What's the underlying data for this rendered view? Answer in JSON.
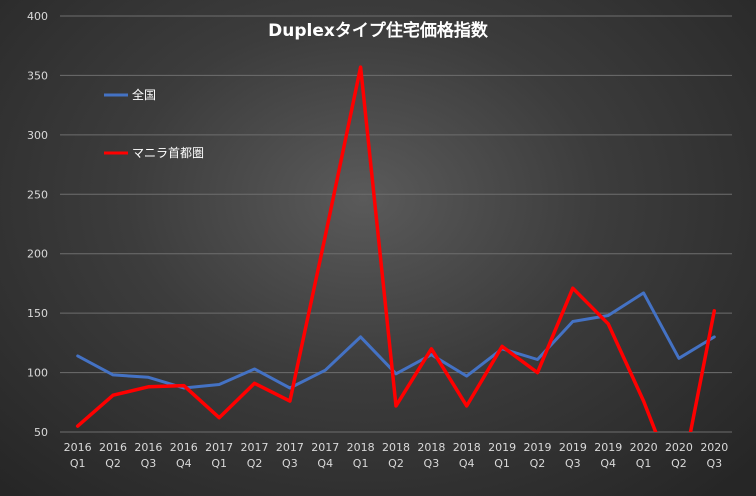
{
  "chart_data": {
    "type": "line",
    "title": "Duplexタイプ住宅価格指数",
    "categories": [
      [
        "2016",
        "Q1"
      ],
      [
        "2016",
        "Q2"
      ],
      [
        "2016",
        "Q3"
      ],
      [
        "2016",
        "Q4"
      ],
      [
        "2017",
        "Q1"
      ],
      [
        "2017",
        "Q2"
      ],
      [
        "2017",
        "Q3"
      ],
      [
        "2017",
        "Q4"
      ],
      [
        "2018",
        "Q1"
      ],
      [
        "2018",
        "Q2"
      ],
      [
        "2018",
        "Q3"
      ],
      [
        "2018",
        "Q4"
      ],
      [
        "2019",
        "Q1"
      ],
      [
        "2019",
        "Q2"
      ],
      [
        "2019",
        "Q3"
      ],
      [
        "2019",
        "Q4"
      ],
      [
        "2020",
        "Q1"
      ],
      [
        "2020",
        "Q2"
      ],
      [
        "2020",
        "Q3"
      ]
    ],
    "ylim": [
      50,
      400
    ],
    "yticks": [
      50,
      100,
      150,
      200,
      250,
      300,
      350,
      400
    ],
    "grid": true,
    "legend_position": "top-left",
    "series": [
      {
        "name": "全国",
        "color": "#4472c4",
        "values": [
          114,
          98,
          96,
          87,
          90,
          103,
          87,
          102,
          130,
          99,
          115,
          97,
          120,
          111,
          143,
          148,
          167,
          112,
          130
        ]
      },
      {
        "name": "マニラ首都圏",
        "color": "#ff0000",
        "values": [
          55,
          81,
          88,
          89,
          62,
          91,
          76,
          215,
          357,
          72,
          120,
          72,
          122,
          100,
          171,
          141,
          76,
          0,
          152
        ]
      }
    ]
  }
}
